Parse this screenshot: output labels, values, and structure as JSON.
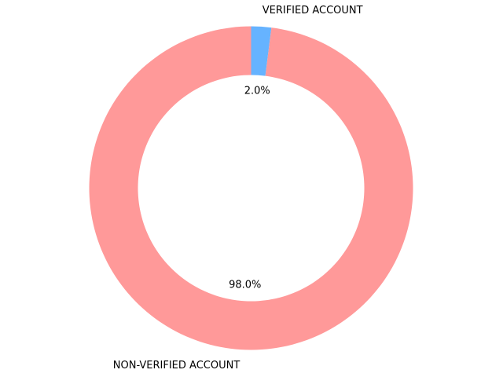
{
  "chart_data": {
    "type": "pie",
    "donut": true,
    "start_angle_deg": 90,
    "direction": "counterclockwise",
    "slices": [
      {
        "label": "NON-VERIFIED ACCOUNT",
        "value": 98.0,
        "pct_label": "98.0%",
        "color": "#ff9999"
      },
      {
        "label": "VERIFIED ACCOUNT",
        "value": 2.0,
        "pct_label": "2.0%",
        "color": "#66b3ff"
      }
    ],
    "legend": "none",
    "grid": false
  }
}
